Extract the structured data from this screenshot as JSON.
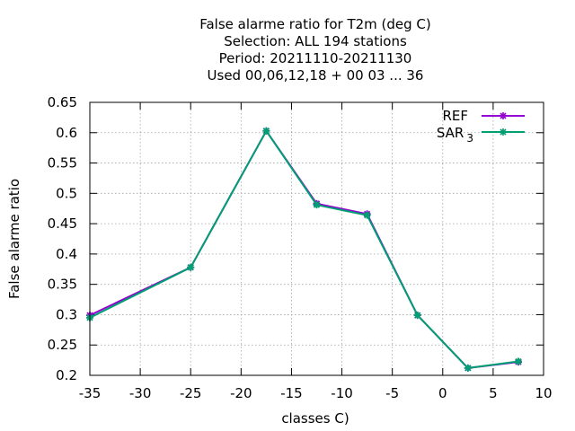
{
  "chart_data": {
    "type": "line",
    "title_lines": [
      "False alarme ratio  for T2m (deg C)",
      "Selection: ALL    194 stations",
      "Period: 20211110-20211130",
      "Used  00,06,12,18 + 00 03 ... 36"
    ],
    "xlabel": "classes C)",
    "ylabel": "False alarme ratio",
    "xlim": [
      -35,
      10
    ],
    "ylim": [
      0.2,
      0.65
    ],
    "xticks": [
      -35,
      -30,
      -25,
      -20,
      -15,
      -10,
      -5,
      0,
      5,
      10
    ],
    "yticks": [
      0.2,
      0.25,
      0.3,
      0.35,
      0.4,
      0.45,
      0.5,
      0.55,
      0.6,
      0.65
    ],
    "grid": true,
    "legend_position": "top-right",
    "series": [
      {
        "name": "REF",
        "color": "#9400d3",
        "x": [
          -35,
          -25,
          -17.5,
          -12.5,
          -7.5,
          -2.5,
          2.5,
          7.5
        ],
        "y": [
          0.299,
          0.378,
          0.603,
          0.483,
          0.466,
          0.299,
          0.212,
          0.222
        ]
      },
      {
        "name": "SAR",
        "name_subscript": "3",
        "color": "#009e73",
        "x": [
          -35,
          -25,
          -17.5,
          -12.5,
          -7.5,
          -2.5,
          2.5,
          7.5
        ],
        "y": [
          0.295,
          0.378,
          0.603,
          0.481,
          0.464,
          0.299,
          0.212,
          0.223
        ]
      }
    ]
  }
}
